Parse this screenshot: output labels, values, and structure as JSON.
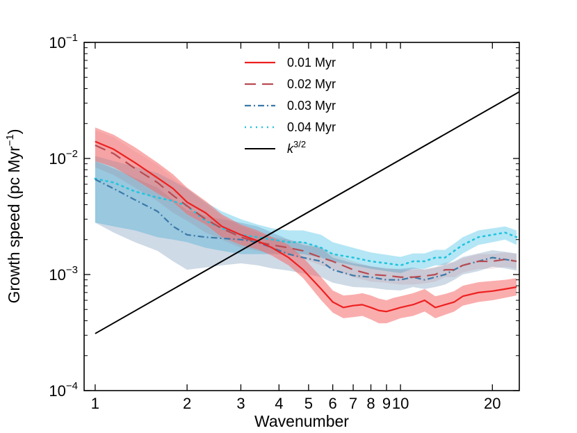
{
  "chart_data": {
    "type": "line",
    "title": "",
    "xlabel": "Wavenumber",
    "ylabel": "Growth speed (pc Myr",
    "ylabel_sup": "−1",
    "ylabel_close": ")",
    "xscale": "log",
    "yscale": "log",
    "xlim": [
      0.92,
      24.5
    ],
    "ylim": [
      0.0001,
      0.1
    ],
    "x_ticks": [
      {
        "value": 1,
        "label": "1"
      },
      {
        "value": 2,
        "label": "2"
      },
      {
        "value": 3,
        "label": "3"
      },
      {
        "value": 4,
        "label": "4"
      },
      {
        "value": 5,
        "label": "5"
      },
      {
        "value": 6,
        "label": "6"
      },
      {
        "value": 7,
        "label": "7"
      },
      {
        "value": 8,
        "label": "8"
      },
      {
        "value": 9,
        "label": "9"
      },
      {
        "value": 10,
        "label": "10"
      },
      {
        "value": 20,
        "label": "20"
      }
    ],
    "y_ticks": [
      {
        "value": 0.0001,
        "base": "10",
        "exp": "−4"
      },
      {
        "value": 0.001,
        "base": "10",
        "exp": "−3"
      },
      {
        "value": 0.01,
        "base": "10",
        "exp": "−2"
      },
      {
        "value": 0.1,
        "base": "10",
        "exp": "−1"
      }
    ],
    "legend_position": "top-center",
    "series": [
      {
        "name": "0.04 Myr",
        "line_color": "#22c4dd",
        "band_color": "#4dc3e6",
        "band_opacity": 0.42,
        "dash": "2,6",
        "x": [
          1,
          1.15,
          1.35,
          1.6,
          1.8,
          2,
          2.3,
          2.6,
          3,
          3.4,
          3.8,
          4.3,
          4.8,
          5.5,
          6,
          7,
          8,
          9,
          10,
          11,
          12,
          13,
          14,
          15,
          16,
          18,
          20,
          22,
          24
        ],
        "y": [
          0.0067,
          0.0062,
          0.0052,
          0.0046,
          0.0043,
          0.0039,
          0.0029,
          0.0025,
          0.0022,
          0.0021,
          0.002,
          0.0019,
          0.0019,
          0.0017,
          0.0015,
          0.0014,
          0.0013,
          0.00125,
          0.0012,
          0.0013,
          0.0013,
          0.0014,
          0.0014,
          0.0016,
          0.0018,
          0.0021,
          0.0022,
          0.0023,
          0.0021
        ],
        "lower": [
          0.0028,
          0.0026,
          0.0024,
          0.0021,
          0.002,
          0.0019,
          0.0017,
          0.0016,
          0.0015,
          0.0015,
          0.0015,
          0.0015,
          0.0015,
          0.0014,
          0.0013,
          0.0012,
          0.00112,
          0.00107,
          0.00103,
          0.00112,
          0.00112,
          0.0012,
          0.0012,
          0.00135,
          0.00152,
          0.0018,
          0.0019,
          0.002,
          0.0018
        ],
        "upper": [
          0.0105,
          0.0095,
          0.0085,
          0.0075,
          0.0064,
          0.0055,
          0.0042,
          0.0035,
          0.003,
          0.0027,
          0.0025,
          0.0024,
          0.0024,
          0.0022,
          0.0019,
          0.0017,
          0.00155,
          0.00148,
          0.00142,
          0.00152,
          0.00152,
          0.00163,
          0.00163,
          0.00185,
          0.0021,
          0.0024,
          0.0025,
          0.0026,
          0.0024
        ]
      },
      {
        "name": "0.03 Myr",
        "line_color": "#3c78a8",
        "band_color": "#5d86ad",
        "band_opacity": 0.3,
        "dash": "9,4,2,4",
        "x": [
          1,
          1.15,
          1.35,
          1.6,
          1.8,
          2,
          2.3,
          2.6,
          3,
          3.4,
          3.8,
          4.3,
          4.8,
          5.5,
          6,
          7,
          8,
          9,
          10,
          11,
          12,
          13,
          14,
          15,
          16,
          18,
          20,
          22,
          24
        ],
        "y": [
          0.0066,
          0.0055,
          0.0044,
          0.0035,
          0.0026,
          0.0022,
          0.0021,
          0.00205,
          0.002,
          0.0019,
          0.0017,
          0.0015,
          0.0014,
          0.0013,
          0.0011,
          0.00098,
          0.00095,
          0.0009,
          0.0009,
          0.00095,
          0.0009,
          0.00095,
          0.001,
          0.0011,
          0.0012,
          0.0013,
          0.0014,
          0.00135,
          0.0013
        ],
        "lower": [
          0.0028,
          0.0023,
          0.0019,
          0.0016,
          0.0013,
          0.0011,
          0.00115,
          0.0012,
          0.00125,
          0.0012,
          0.00113,
          0.00108,
          0.00102,
          0.00095,
          0.00085,
          0.00078,
          0.00077,
          0.00074,
          0.00073,
          0.00078,
          0.00075,
          0.00078,
          0.00082,
          0.0009,
          0.001,
          0.00107,
          0.00117,
          0.00113,
          0.00108
        ],
        "upper": [
          0.0095,
          0.0082,
          0.0068,
          0.0056,
          0.0044,
          0.0036,
          0.0032,
          0.003,
          0.0028,
          0.0026,
          0.0023,
          0.002,
          0.0018,
          0.0017,
          0.0014,
          0.00125,
          0.00118,
          0.00112,
          0.00112,
          0.00115,
          0.0011,
          0.00115,
          0.0012,
          0.0013,
          0.00142,
          0.00152,
          0.00162,
          0.00157,
          0.00152
        ]
      },
      {
        "name": "0.02 Myr",
        "line_color": "#b84a52",
        "band_color": "#a64854",
        "band_opacity": 0.12,
        "dash": "16,9",
        "x": [
          1,
          1.15,
          1.35,
          1.6,
          1.8,
          2,
          2.3,
          2.6,
          3,
          3.4,
          3.8,
          4.3,
          4.8,
          5.5,
          6,
          7,
          8,
          9,
          10,
          11,
          12,
          13,
          14,
          15,
          16,
          18,
          20,
          22,
          24
        ],
        "y": [
          0.013,
          0.011,
          0.0082,
          0.0062,
          0.0048,
          0.0039,
          0.003,
          0.0025,
          0.0021,
          0.0019,
          0.0018,
          0.0017,
          0.0016,
          0.0014,
          0.0013,
          0.0011,
          0.001,
          0.00098,
          0.00095,
          0.00095,
          0.00097,
          0.001,
          0.0011,
          0.0011,
          0.0012,
          0.0013,
          0.0013,
          0.00135,
          0.0013
        ],
        "lower": [
          0.0084,
          0.0072,
          0.0056,
          0.0043,
          0.0034,
          0.0029,
          0.0023,
          0.002,
          0.0017,
          0.0016,
          0.00152,
          0.00145,
          0.00137,
          0.0012,
          0.00112,
          0.00095,
          0.00087,
          0.00085,
          0.00082,
          0.00082,
          0.00084,
          0.00087,
          0.00095,
          0.00095,
          0.00104,
          0.00112,
          0.00112,
          0.00117,
          0.00112
        ],
        "upper": [
          0.0175,
          0.0152,
          0.0115,
          0.0088,
          0.0068,
          0.0055,
          0.0041,
          0.0032,
          0.0026,
          0.0023,
          0.0021,
          0.002,
          0.0019,
          0.0017,
          0.0015,
          0.0013,
          0.00117,
          0.00114,
          0.0011,
          0.0011,
          0.00112,
          0.00116,
          0.00127,
          0.00127,
          0.00138,
          0.0015,
          0.0015,
          0.00155,
          0.0015
        ]
      },
      {
        "name": "0.01 Myr",
        "line_color": "#ee2020",
        "band_color": "#f56a6a",
        "band_opacity": 0.55,
        "dash": "",
        "x": [
          1,
          1.15,
          1.35,
          1.6,
          1.8,
          2,
          2.3,
          2.6,
          3,
          3.4,
          3.8,
          4.3,
          4.8,
          5.5,
          6,
          6.5,
          7,
          7.5,
          8,
          8.5,
          9,
          9.5,
          10,
          11,
          12,
          13,
          14,
          15,
          16,
          18,
          20,
          22,
          24
        ],
        "y": [
          0.014,
          0.012,
          0.0092,
          0.0068,
          0.0055,
          0.0042,
          0.0034,
          0.0026,
          0.0022,
          0.00195,
          0.0017,
          0.0014,
          0.0011,
          0.00075,
          0.00058,
          0.00052,
          0.00054,
          0.00055,
          0.00052,
          0.00049,
          0.00048,
          0.0005,
          0.00052,
          0.00055,
          0.0006,
          0.00052,
          0.00055,
          0.00058,
          0.00065,
          0.0007,
          0.00072,
          0.00075,
          0.00078
        ],
        "lower": [
          0.0095,
          0.0084,
          0.0066,
          0.005,
          0.0042,
          0.0033,
          0.0027,
          0.0021,
          0.0018,
          0.00165,
          0.00145,
          0.0012,
          0.00093,
          0.0006,
          0.00047,
          0.00042,
          0.00043,
          0.00044,
          0.00041,
          0.00038,
          0.00038,
          0.0004,
          0.00042,
          0.00044,
          0.00048,
          0.00042,
          0.00045,
          0.00048,
          0.00054,
          0.00058,
          0.0006,
          0.00063,
          0.00066
        ],
        "upper": [
          0.0185,
          0.016,
          0.0125,
          0.0092,
          0.0073,
          0.0056,
          0.0043,
          0.0033,
          0.0027,
          0.0024,
          0.0021,
          0.0018,
          0.0014,
          0.00095,
          0.00073,
          0.00066,
          0.00067,
          0.00069,
          0.00066,
          0.00062,
          0.0006,
          0.00063,
          0.00065,
          0.00069,
          0.00075,
          0.00065,
          0.00068,
          0.00072,
          0.0008,
          0.00086,
          0.00088,
          0.0009,
          0.00093
        ]
      }
    ],
    "reference_line": {
      "name": "k",
      "name_sup": "3/2",
      "color": "#000000",
      "exponent": 1.5,
      "x": [
        1,
        24.5
      ],
      "y": [
        0.00031,
        0.0375
      ]
    },
    "legend_order": [
      "0.01 Myr",
      "0.02 Myr",
      "0.03 Myr",
      "0.04 Myr",
      "k3/2"
    ]
  }
}
